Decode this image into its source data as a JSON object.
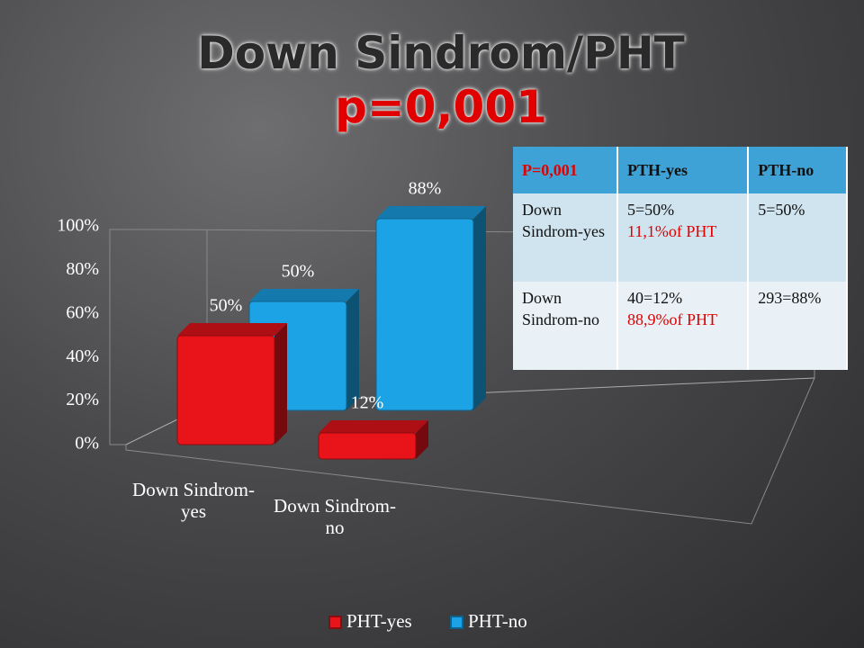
{
  "slide": {
    "title": "Down Sindrom/PHT",
    "subtitle": "p=0,001"
  },
  "chart_data": {
    "type": "bar3d",
    "categories": [
      "Down Sindrom-yes",
      "Down Sindrom-no"
    ],
    "series": [
      {
        "name": "PHT-yes",
        "color": "#e8141a",
        "values": [
          50,
          12
        ],
        "value_labels": [
          "50%",
          "12%"
        ]
      },
      {
        "name": "PHT-no",
        "color": "#1ba3e6",
        "values": [
          50,
          88
        ],
        "value_labels": [
          "50%",
          "88%"
        ]
      }
    ],
    "ylim": [
      0,
      100
    ],
    "yticks": [
      {
        "value": 0,
        "label": "0%"
      },
      {
        "value": 20,
        "label": "20%"
      },
      {
        "value": 40,
        "label": "40%"
      },
      {
        "value": 60,
        "label": "60%"
      },
      {
        "value": 80,
        "label": "80%"
      },
      {
        "value": 100,
        "label": "100%"
      }
    ],
    "grid": false,
    "legend": "bottom"
  },
  "table": {
    "header": [
      "P=0,001",
      "PTH-yes",
      "PTH-no"
    ],
    "rows": [
      [
        "Down Sindrom-yes",
        {
          "text": "5=50%",
          "note": "11,1%of PHT"
        },
        "5=50%"
      ],
      [
        "Down Sindrom-no",
        {
          "text": "40=12%",
          "note": "88,9%of PHT"
        },
        "293=88%"
      ]
    ]
  }
}
